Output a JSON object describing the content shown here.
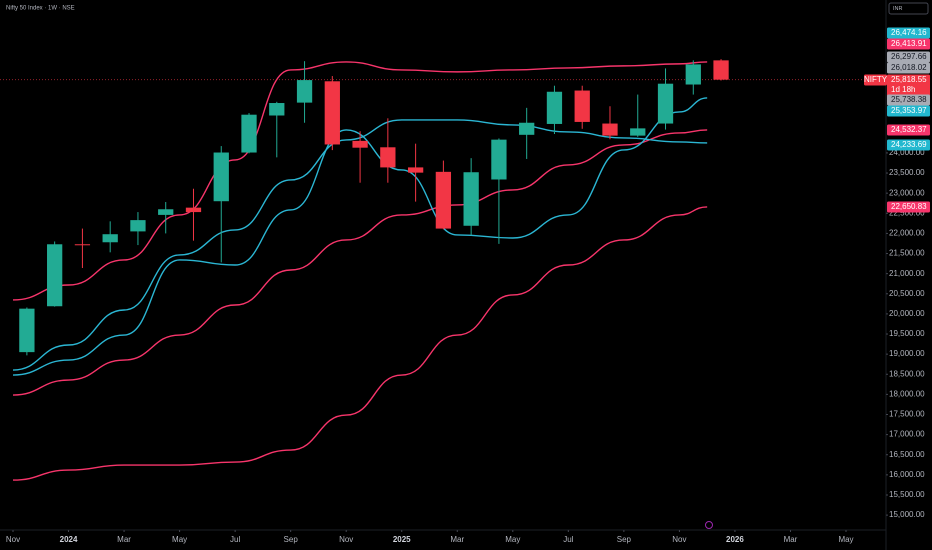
{
  "chart_data": {
    "type": "candlestick",
    "title": "Nifty 50 Index · 1W · NSE",
    "currency": "INR",
    "symbol": "NIFTY",
    "countdown": "1d 18h",
    "up_color": "#22ab94",
    "down_color": "#f23645",
    "grid": false,
    "ylim": [
      14630,
      27800
    ],
    "yticks": [
      {
        "value": 15000,
        "label": "15,000.00"
      },
      {
        "value": 15500,
        "label": "15,500.00"
      },
      {
        "value": 16000,
        "label": "16,000.00"
      },
      {
        "value": 16500,
        "label": "16,500.00"
      },
      {
        "value": 17000,
        "label": "17,000.00"
      },
      {
        "value": 17500,
        "label": "17,500.00"
      },
      {
        "value": 18000,
        "label": "18,000.00"
      },
      {
        "value": 18500,
        "label": "18,500.00"
      },
      {
        "value": 19000,
        "label": "19,000.00"
      },
      {
        "value": 19500,
        "label": "19,500.00"
      },
      {
        "value": 20000,
        "label": "20,000.00"
      },
      {
        "value": 20500,
        "label": "20,500.00"
      },
      {
        "value": 21000,
        "label": "21,000.00"
      },
      {
        "value": 21500,
        "label": "21,500.00"
      },
      {
        "value": 22000,
        "label": "22,000.00"
      },
      {
        "value": 22500,
        "label": "22,500.00"
      },
      {
        "value": 23000,
        "label": "23,000.00"
      },
      {
        "value": 23500,
        "label": "23,500.00"
      },
      {
        "value": 24000,
        "label": "24,000.00"
      }
    ],
    "xlim": [
      "2023-11",
      "2026-05"
    ],
    "xticks": [
      {
        "value": "2023-11",
        "label": "Nov"
      },
      {
        "value": "2024-01",
        "label": "2024"
      },
      {
        "value": "2024-03",
        "label": "Mar"
      },
      {
        "value": "2024-05",
        "label": "May"
      },
      {
        "value": "2024-07",
        "label": "Jul"
      },
      {
        "value": "2024-09",
        "label": "Sep"
      },
      {
        "value": "2024-11",
        "label": "Nov"
      },
      {
        "value": "2025-01",
        "label": "2025"
      },
      {
        "value": "2025-03",
        "label": "Mar"
      },
      {
        "value": "2025-05",
        "label": "May"
      },
      {
        "value": "2025-07",
        "label": "Jul"
      },
      {
        "value": "2025-09",
        "label": "Sep"
      },
      {
        "value": "2025-11",
        "label": "Nov"
      },
      {
        "value": "2026-01",
        "label": "2026"
      },
      {
        "value": "2026-03",
        "label": "Mar"
      },
      {
        "value": "2026-05",
        "label": "May"
      }
    ],
    "x": [
      "2023-11",
      "2023-12",
      "2024-01",
      "2024-02",
      "2024-03",
      "2024-04",
      "2024-05",
      "2024-06",
      "2024-07",
      "2024-08",
      "2024-09",
      "2024-10",
      "2024-11",
      "2024-12",
      "2025-01",
      "2025-02",
      "2025-03",
      "2025-04",
      "2025-05",
      "2025-06",
      "2025-07",
      "2025-08",
      "2025-09",
      "2025-10",
      "2025-11",
      "2025-12"
    ],
    "open": [
      19050,
      20190,
      21730,
      21780,
      22050,
      22460,
      22640,
      22800,
      24010,
      24930,
      25250,
      25780,
      24300,
      24140,
      23640,
      23530,
      22190,
      23340,
      24450,
      24720,
      25550,
      24730,
      24430,
      24730,
      25700,
      26300
    ],
    "high": [
      20160,
      21800,
      22120,
      22300,
      22530,
      22780,
      23110,
      24170,
      24990,
      25270,
      26280,
      25910,
      24540,
      24860,
      24230,
      23810,
      23870,
      24360,
      25120,
      25670,
      25670,
      25160,
      25450,
      26100,
      26300,
      26330
    ],
    "low": [
      18970,
      20180,
      21140,
      21530,
      21710,
      22000,
      21820,
      21280,
      23990,
      23890,
      24750,
      24070,
      23260,
      23260,
      22790,
      22100,
      21960,
      21740,
      23850,
      24470,
      24600,
      24340,
      24400,
      24580,
      25450,
      25800
    ],
    "close": [
      20130,
      21730,
      21720,
      21980,
      22330,
      22600,
      22530,
      24010,
      24950,
      25240,
      25810,
      24210,
      24130,
      23640,
      23510,
      22120,
      23520,
      24330,
      24750,
      25520,
      24770,
      24430,
      24610,
      25720,
      26200,
      25820
    ],
    "overlays": [
      {
        "color": "#f7356b",
        "x": [
          "2023-11",
          "2024-01",
          "2024-03",
          "2024-05",
          "2024-07",
          "2024-09",
          "2024-11",
          "2025-01",
          "2025-03",
          "2025-05",
          "2025-07",
          "2025-09",
          "2025-11",
          "2025-12"
        ],
        "values": [
          20346,
          20718,
          21340,
          22459,
          23826,
          26063,
          26262,
          26063,
          26014,
          26063,
          26113,
          26163,
          26213,
          26262
        ]
      },
      {
        "color": "#f7356b",
        "x": [
          "2023-11",
          "2024-01",
          "2024-03",
          "2024-05",
          "2024-07",
          "2024-09",
          "2024-11",
          "2025-01",
          "2025-03",
          "2025-05",
          "2025-07",
          "2025-09",
          "2025-11",
          "2025-12"
        ],
        "values": [
          17984,
          18357,
          18854,
          19475,
          20221,
          21091,
          21837,
          22459,
          22707,
          23080,
          23702,
          24199,
          24497,
          24572
        ]
      },
      {
        "color": "#f7356b",
        "x": [
          "2023-11",
          "2024-01",
          "2024-03",
          "2024-05",
          "2024-07",
          "2024-09",
          "2024-11",
          "2025-01",
          "2025-03",
          "2025-05",
          "2025-07",
          "2025-09",
          "2025-11",
          "2025-12"
        ],
        "values": [
          15870,
          16119,
          16243,
          16243,
          16318,
          16616,
          17486,
          18481,
          19475,
          20470,
          21215,
          21837,
          22459,
          22657
        ]
      },
      {
        "color": "#2bb6d3",
        "x": [
          "2023-11",
          "2024-01",
          "2024-03",
          "2024-05",
          "2024-07",
          "2024-09",
          "2024-11",
          "2025-01",
          "2025-03",
          "2025-05",
          "2025-07",
          "2025-09",
          "2025-11",
          "2025-12"
        ],
        "values": [
          18605,
          19227,
          20097,
          21465,
          22086,
          23329,
          24323,
          24820,
          24820,
          24696,
          24522,
          24373,
          24273,
          24249
        ]
      },
      {
        "color": "#2bb6d3",
        "x": [
          "2023-11",
          "2024-01",
          "2024-03",
          "2024-05",
          "2024-07",
          "2024-09",
          "2024-11",
          "2025-01",
          "2025-03",
          "2025-05",
          "2025-07",
          "2025-09",
          "2025-11",
          "2025-12"
        ],
        "values": [
          18481,
          18854,
          19475,
          21340,
          21215,
          22583,
          24572,
          23577,
          21961,
          21886,
          22459,
          24075,
          25019,
          25367
        ]
      }
    ],
    "price_tags": [
      {
        "value": 26474.16,
        "label": "26,474.16",
        "color": "#22b8cf"
      },
      {
        "value": 26413.91,
        "label": "26,413.91",
        "color": "#f7356b"
      },
      {
        "value": 26297.66,
        "label": "26,297.66",
        "color": "#a8abb4"
      },
      {
        "value": 26018.02,
        "label": "26,018.02",
        "color": "#a8abb4"
      },
      {
        "value": 25818.55,
        "label": "25,818.55",
        "color": "#f23645"
      },
      {
        "value": 25738.38,
        "label": "25,738.38",
        "color": "#a8abb4"
      },
      {
        "value": 25353.97,
        "label": "25,353.97",
        "color": "#22b8cf"
      },
      {
        "value": 24532.37,
        "label": "24,532.37",
        "color": "#f7356b"
      },
      {
        "value": 24233.69,
        "label": "24,233.69",
        "color": "#22b8cf"
      },
      {
        "value": 22650.83,
        "label": "22,650.83",
        "color": "#f7356b"
      }
    ]
  }
}
